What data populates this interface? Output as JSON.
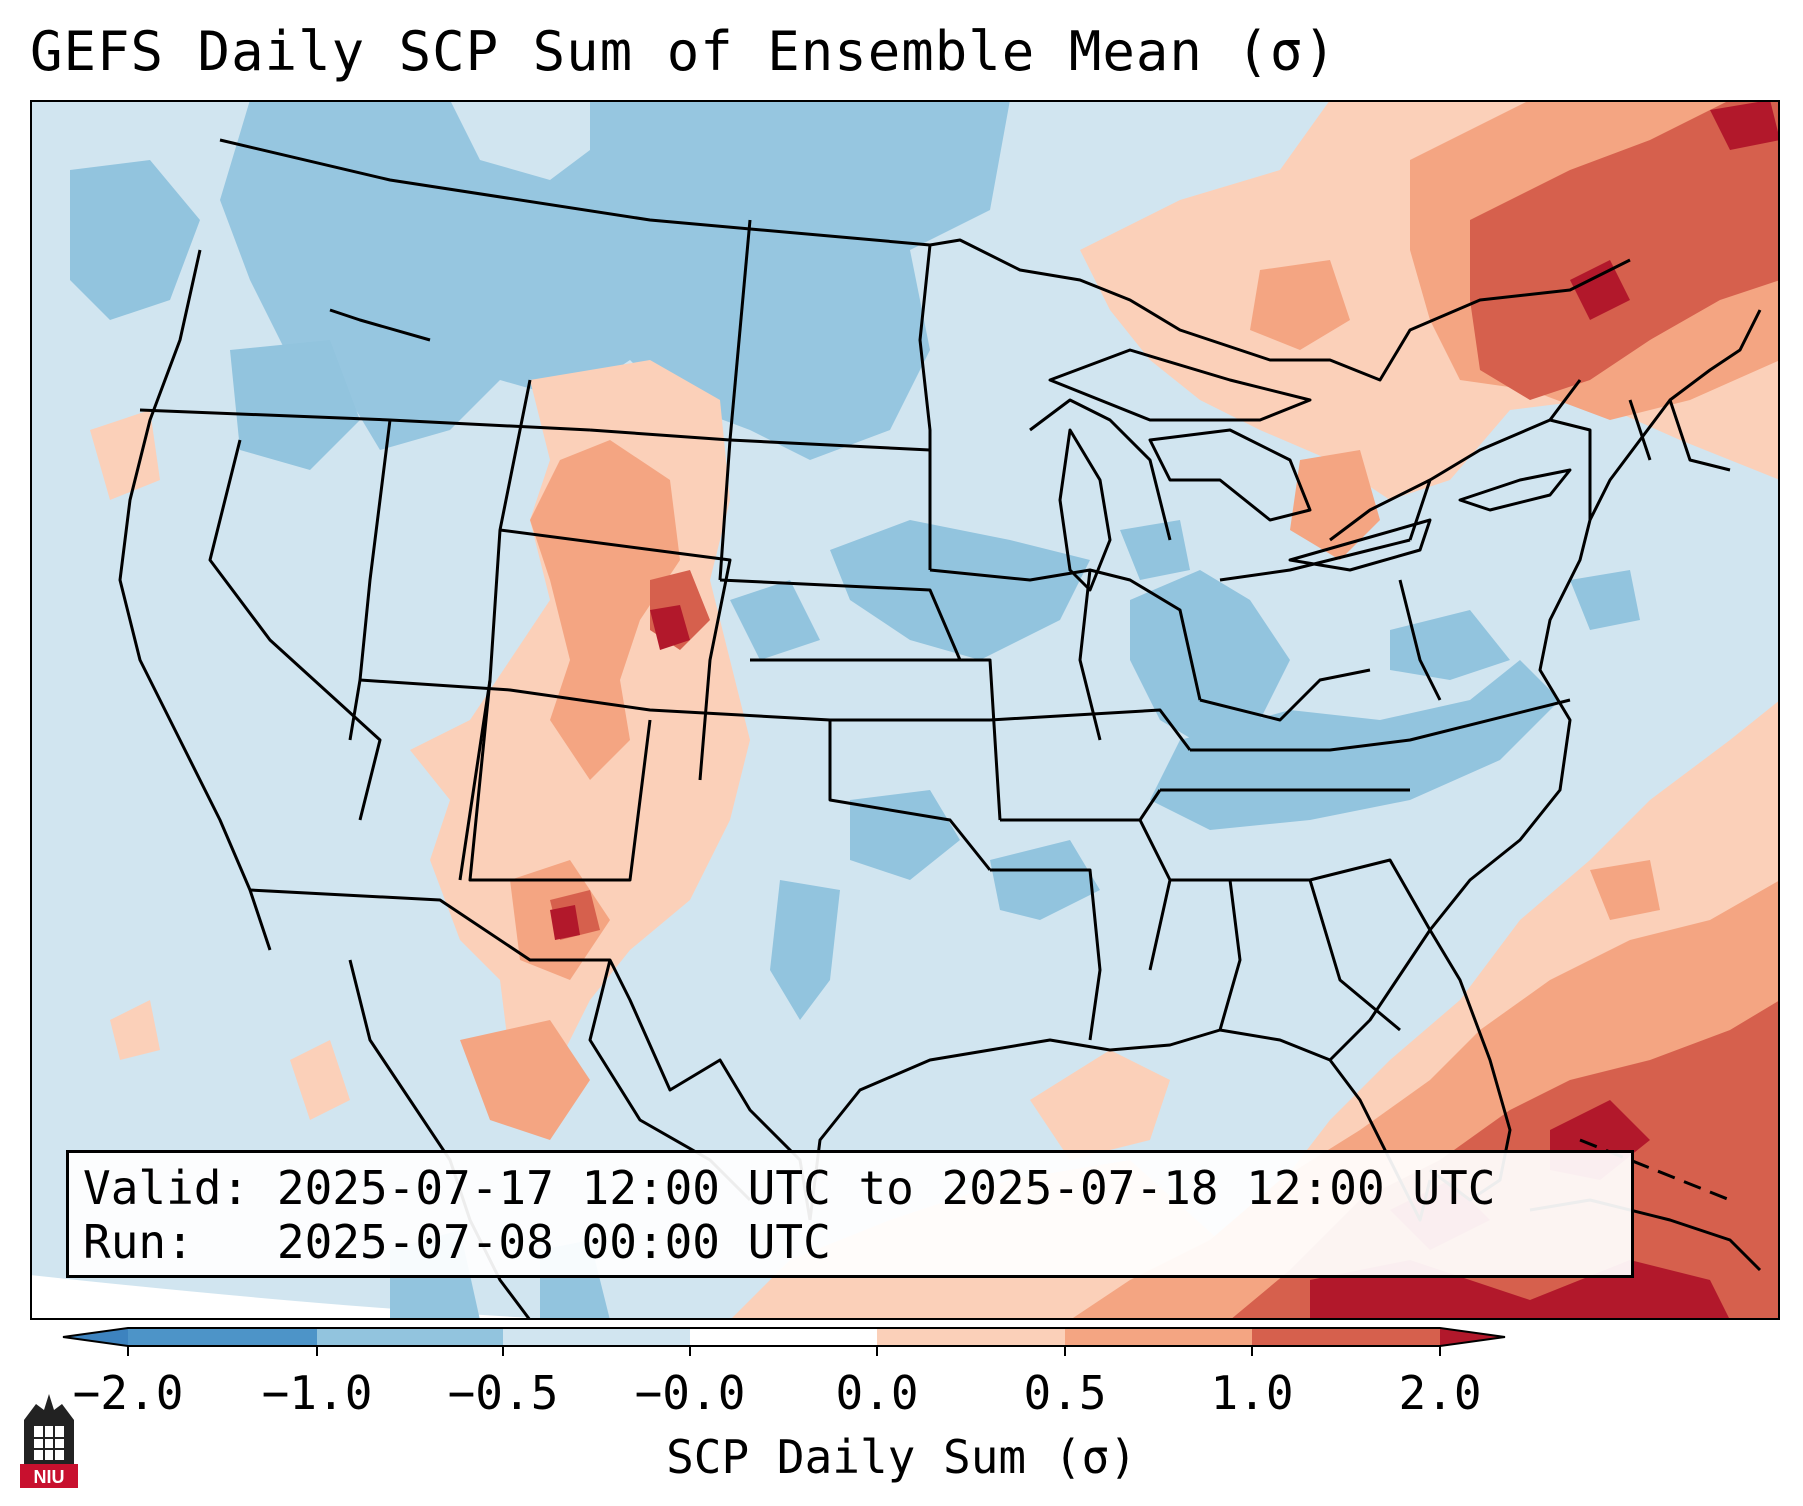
{
  "title": "GEFS Daily SCP Sum of Ensemble Mean (σ)",
  "info": {
    "valid_label": "Valid:",
    "valid_value": "2025-07-17 12:00 UTC to 2025-07-18 12:00 UTC",
    "run_label": "Run:",
    "run_value": "2025-07-08 00:00 UTC"
  },
  "colorbar": {
    "label": "SCP Daily Sum (σ)",
    "ticks": [
      "−2.0",
      "−1.0",
      "−0.5",
      "−0.0",
      "0.0",
      "0.5",
      "1.0",
      "2.0"
    ],
    "bins": [
      {
        "name": "below -2.0",
        "color": "#3d83bf"
      },
      {
        "name": "-2.0 to -1.0",
        "color": "#4d94c8"
      },
      {
        "name": "-1.0 to -0.5",
        "color": "#92c4de"
      },
      {
        "name": "-0.5 to 0.0",
        "color": "#d1e5f0"
      },
      {
        "name": "0.0",
        "color": "#ffffff"
      },
      {
        "name": "0.0 to 0.5",
        "color": "#fbd0b9"
      },
      {
        "name": "0.5 to 1.0",
        "color": "#f4a582"
      },
      {
        "name": "1.0 to 2.0",
        "color": "#d6604d"
      },
      {
        "name": "above 2.0",
        "color": "#b2182b"
      }
    ]
  },
  "map": {
    "type": "gridded-anomaly",
    "region": "Contiguous United States",
    "background_bin": "-0.5 to 0.0",
    "ocean_color": "#d1e5f0",
    "line_color": "#000000"
  },
  "logo": {
    "text": "NIU",
    "color": "#c8102e"
  }
}
